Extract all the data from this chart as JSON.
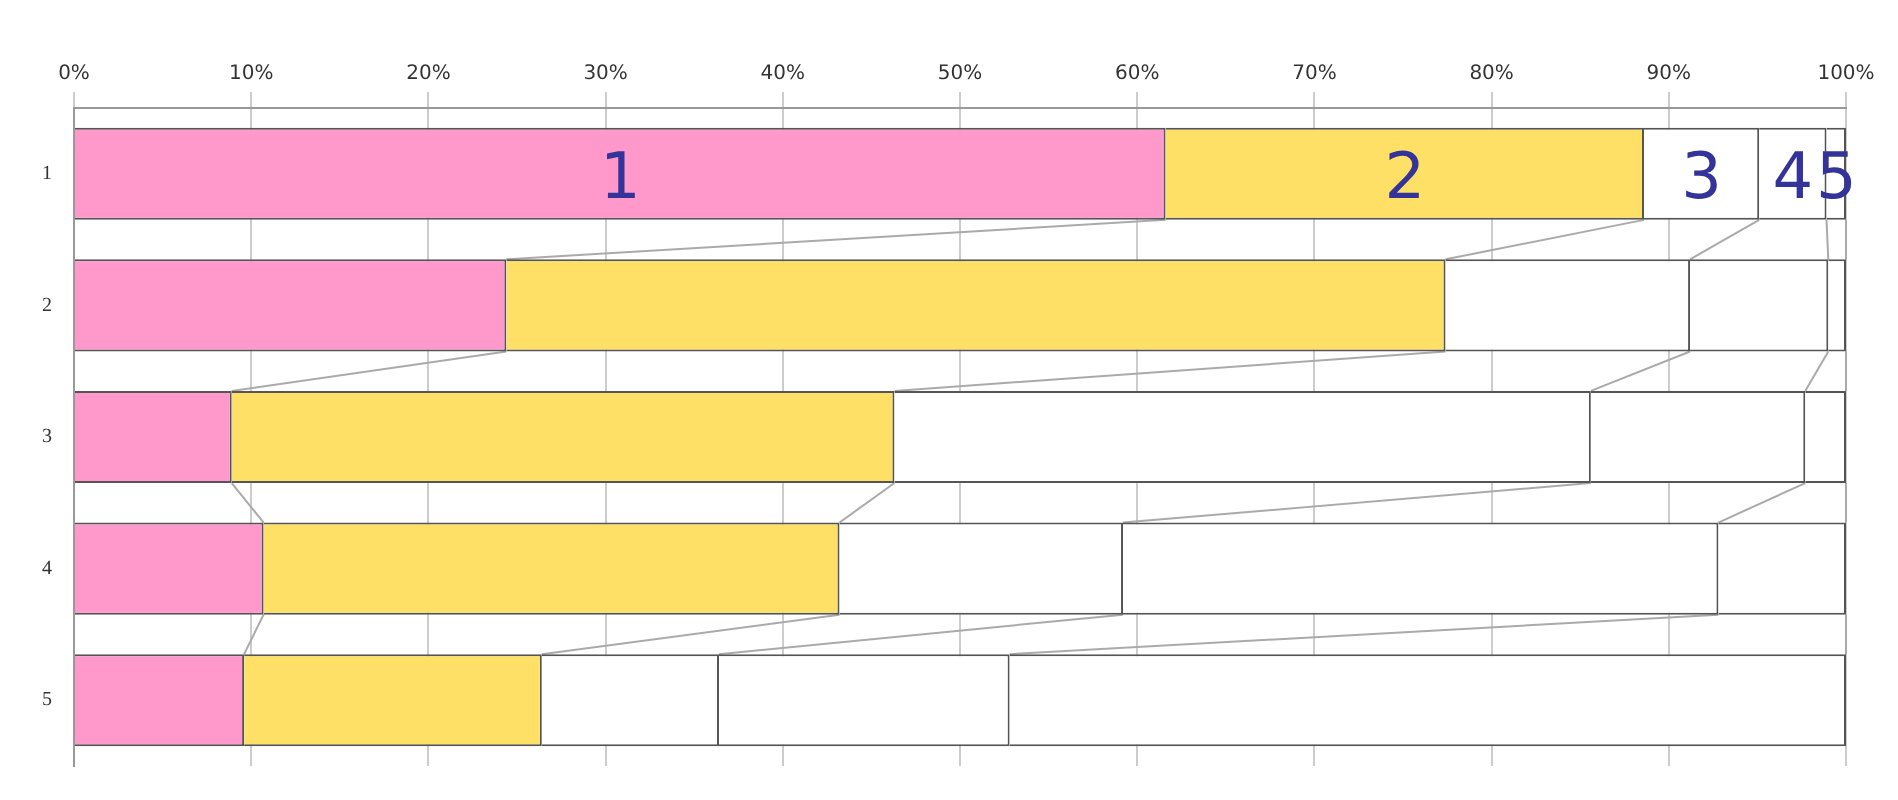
{
  "chart_data": {
    "type": "bar",
    "orientation": "horizontal",
    "stacked": true,
    "categories": [
      "1",
      "2",
      "3",
      "4",
      "5"
    ],
    "series": [
      {
        "name": "1",
        "color": "#ff99cc",
        "values": [
          61.6,
          24.4,
          8.9,
          10.7,
          9.6
        ]
      },
      {
        "name": "2",
        "color": "#ffe066",
        "values": [
          27.0,
          53.0,
          37.4,
          32.5,
          16.8
        ]
      },
      {
        "name": "3",
        "color": "#ffffff",
        "values": [
          6.5,
          13.8,
          39.3,
          16.0,
          10.0
        ]
      },
      {
        "name": "4",
        "color": "#ffffff",
        "values": [
          3.8,
          7.8,
          12.1,
          33.6,
          16.4
        ]
      },
      {
        "name": "5",
        "color": "#ffffff",
        "values": [
          1.1,
          1.0,
          2.3,
          7.2,
          47.2
        ]
      }
    ],
    "xlim": [
      0,
      100
    ],
    "xticks": [
      {
        "value": 0,
        "label": "0%"
      },
      {
        "value": 10,
        "label": "10%"
      },
      {
        "value": 20,
        "label": "20%"
      },
      {
        "value": 30,
        "label": "30%"
      },
      {
        "value": 40,
        "label": "40%"
      },
      {
        "value": 50,
        "label": "50%"
      },
      {
        "value": 60,
        "label": "60%"
      },
      {
        "value": 70,
        "label": "70%"
      },
      {
        "value": 80,
        "label": "80%"
      },
      {
        "value": 90,
        "label": "90%"
      },
      {
        "value": 100,
        "label": "100%"
      }
    ],
    "grid": "x",
    "legend": false
  }
}
